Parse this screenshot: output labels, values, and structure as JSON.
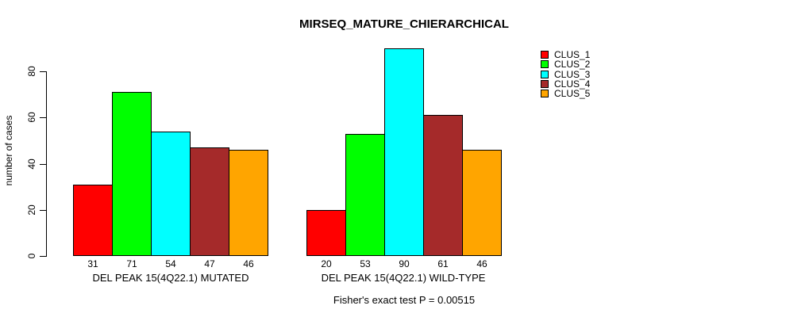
{
  "title": "MIRSEQ_MATURE_CHIERARCHICAL",
  "chart_data": {
    "type": "bar",
    "title": "MIRSEQ_MATURE_CHIERARCHICAL",
    "xlabel": "",
    "ylabel": "number of cases",
    "ylim": [
      0,
      90
    ],
    "yticks": [
      0,
      20,
      40,
      60,
      80
    ],
    "grid": false,
    "legend_position": "top-right",
    "categories": [
      "DEL PEAK 15(4Q22.1) MUTATED",
      "DEL PEAK 15(4Q22.1) WILD-TYPE"
    ],
    "groups": [
      {
        "label": "DEL PEAK 15(4Q22.1) MUTATED",
        "values": [
          31,
          71,
          54,
          47,
          46
        ]
      },
      {
        "label": "DEL PEAK 15(4Q22.1) WILD-TYPE",
        "values": [
          20,
          53,
          90,
          61,
          46
        ]
      }
    ],
    "series": [
      {
        "name": "CLUS_1",
        "color": "#FF0000",
        "values": [
          31,
          20
        ]
      },
      {
        "name": "CLUS_2",
        "color": "#00FF00",
        "values": [
          71,
          53
        ]
      },
      {
        "name": "CLUS_3",
        "color": "#00FFFF",
        "values": [
          54,
          90
        ]
      },
      {
        "name": "CLUS_4",
        "color": "#A52A2A",
        "values": [
          47,
          61
        ]
      },
      {
        "name": "CLUS_5",
        "color": "#FFA500",
        "values": [
          46,
          46
        ]
      }
    ],
    "bar_value_labels": [
      [
        31,
        71,
        54,
        47,
        46
      ],
      [
        20,
        53,
        90,
        61,
        46
      ]
    ],
    "annotation": "Fisher's exact test P = 0.00515"
  }
}
